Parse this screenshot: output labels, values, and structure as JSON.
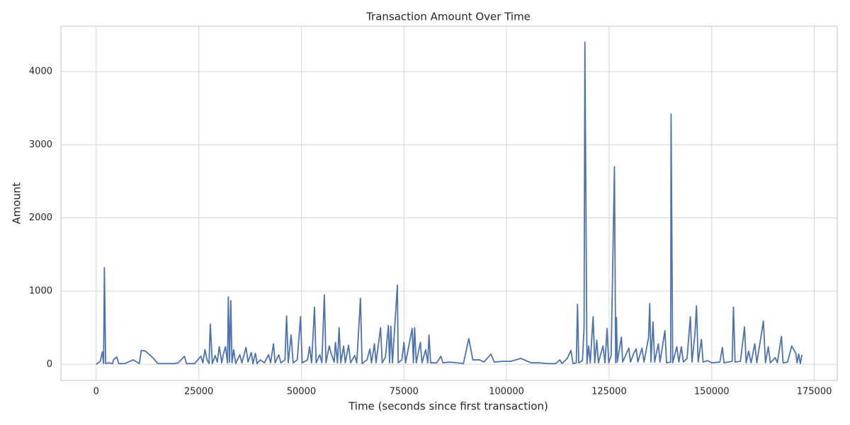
{
  "chart_data": {
    "type": "line",
    "title": "Transaction Amount Over Time",
    "xlabel": "Time (seconds since first transaction)",
    "ylabel": "Amount",
    "color": "#4c72b0",
    "grid": true,
    "xlim": [
      -8600,
      180600
    ],
    "ylim": [
      -220,
      4620
    ],
    "xticks": [
      0,
      25000,
      50000,
      75000,
      100000,
      125000,
      150000,
      175000
    ],
    "yticks": [
      0,
      1000,
      2000,
      3000,
      4000
    ],
    "x": [
      0,
      1000,
      1500,
      1800,
      2000,
      2300,
      3000,
      4000,
      4200,
      5000,
      5500,
      7000,
      9000,
      10500,
      11000,
      12000,
      14000,
      15000,
      19000,
      20000,
      21500,
      22000,
      24000,
      25500,
      26000,
      26500,
      27000,
      27500,
      27800,
      28300,
      29000,
      29500,
      30000,
      30600,
      31000,
      31500,
      32000,
      32200,
      32500,
      32800,
      33100,
      33500,
      34000,
      35000,
      35500,
      36500,
      37000,
      37800,
      38200,
      38800,
      39200,
      40000,
      41000,
      42000,
      42500,
      43200,
      43600,
      44500,
      45000,
      46000,
      46400,
      46800,
      47500,
      48000,
      49000,
      49800,
      50200,
      51500,
      52000,
      52500,
      53200,
      53600,
      54500,
      55000,
      55600,
      56000,
      56800,
      57300,
      58000,
      58300,
      58800,
      59200,
      59600,
      60300,
      60700,
      61500,
      62000,
      63000,
      63500,
      64400,
      64800,
      66000,
      66700,
      67100,
      67800,
      68200,
      69300,
      69700,
      70500,
      71200,
      71500,
      71800,
      72200,
      73400,
      73600,
      74500,
      75000,
      75400,
      77000,
      77300,
      77600,
      78000,
      79000,
      79400,
      80300,
      80800,
      81100,
      81500,
      83000,
      84000,
      84500,
      86000,
      88000,
      89500,
      90800,
      91800,
      93500,
      94500,
      96200,
      97000,
      99000,
      101000,
      103500,
      106000,
      108000,
      110000,
      112000,
      113000,
      113500,
      114800,
      115700,
      116200,
      117000,
      117300,
      117600,
      118500,
      118900,
      119100,
      119600,
      120000,
      120400,
      121100,
      121500,
      122000,
      122400,
      123500,
      124000,
      124500,
      124900,
      125500,
      126300,
      126600,
      126800,
      127000,
      127500,
      128000,
      128300,
      129800,
      130200,
      131000,
      131600,
      132000,
      133000,
      133500,
      134600,
      134900,
      135200,
      135700,
      136100,
      137000,
      137400,
      138600,
      139000,
      140000,
      140100,
      140500,
      141500,
      142000,
      142600,
      143100,
      144000,
      144800,
      145200,
      145900,
      146300,
      146700,
      147500,
      147900,
      149000,
      150000,
      152000,
      152600,
      153000,
      155000,
      155300,
      155700,
      157000,
      158000,
      158400,
      159000,
      159600,
      160500,
      161000,
      162600,
      163100,
      163800,
      164300,
      165500,
      166000,
      167000,
      167400,
      168500,
      169500,
      170500,
      170800,
      171200,
      171600,
      172000
    ],
    "values": [
      0,
      40,
      170,
      10,
      1320,
      10,
      20,
      10,
      60,
      100,
      10,
      10,
      60,
      10,
      190,
      180,
      80,
      10,
      10,
      20,
      110,
      10,
      10,
      110,
      20,
      200,
      60,
      10,
      550,
      10,
      120,
      30,
      240,
      20,
      140,
      240,
      20,
      920,
      30,
      870,
      20,
      200,
      10,
      130,
      20,
      230,
      30,
      160,
      10,
      150,
      10,
      60,
      20,
      130,
      20,
      280,
      20,
      130,
      20,
      60,
      660,
      20,
      400,
      20,
      60,
      650,
      20,
      60,
      240,
      20,
      780,
      20,
      130,
      20,
      950,
      20,
      250,
      140,
      30,
      300,
      20,
      500,
      20,
      250,
      20,
      260,
      20,
      120,
      20,
      900,
      10,
      60,
      210,
      20,
      280,
      20,
      500,
      20,
      100,
      530,
      20,
      520,
      20,
      1080,
      20,
      60,
      300,
      20,
      490,
      20,
      500,
      20,
      300,
      20,
      200,
      20,
      400,
      20,
      20,
      110,
      20,
      30,
      20,
      10,
      350,
      60,
      60,
      30,
      140,
      30,
      40,
      40,
      80,
      20,
      20,
      10,
      10,
      60,
      10,
      80,
      190,
      10,
      20,
      820,
      20,
      50,
      500,
      4400,
      10,
      250,
      20,
      650,
      20,
      330,
      20,
      250,
      20,
      490,
      20,
      120,
      2700,
      20,
      640,
      30,
      200,
      370,
      30,
      220,
      30,
      150,
      210,
      30,
      220,
      30,
      360,
      830,
      30,
      580,
      30,
      280,
      30,
      460,
      20,
      30,
      3420,
      20,
      240,
      30,
      240,
      30,
      80,
      650,
      30,
      400,
      800,
      30,
      340,
      30,
      50,
      20,
      30,
      230,
      20,
      40,
      780,
      30,
      40,
      510,
      20,
      180,
      20,
      280,
      20,
      590,
      20,
      240,
      20,
      90,
      20,
      380,
      20,
      30,
      250,
      150,
      20,
      140,
      10,
      130
    ]
  }
}
